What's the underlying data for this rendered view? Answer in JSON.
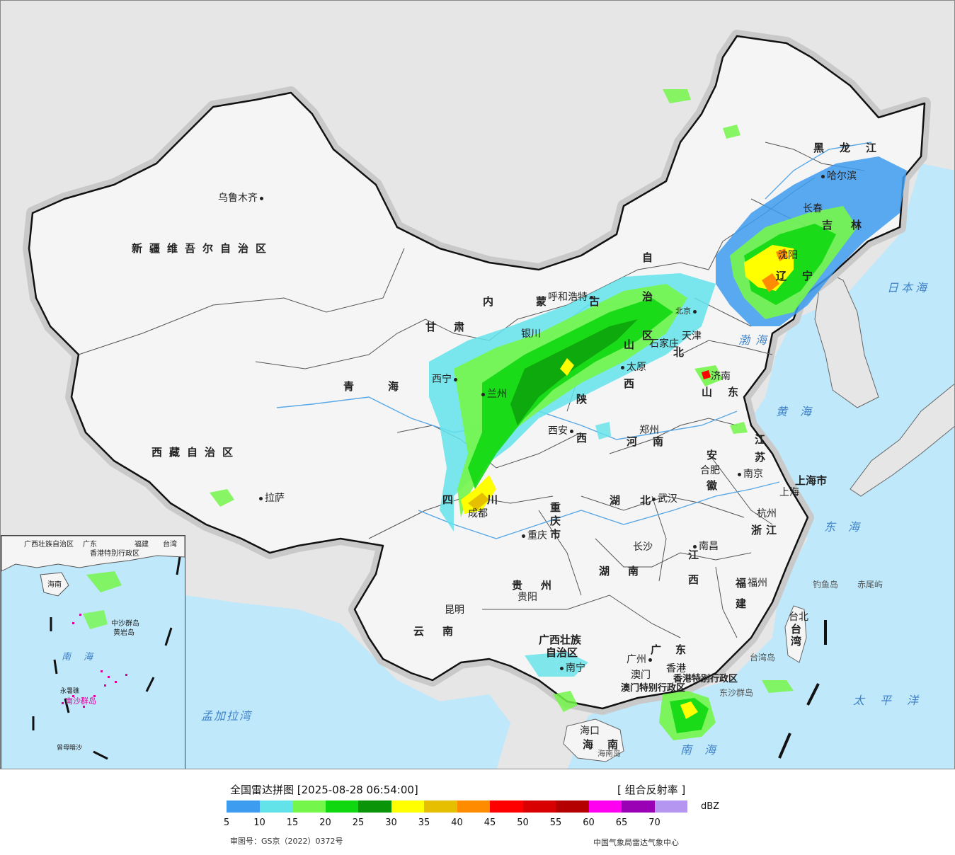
{
  "legend": {
    "title": "全国雷达拼图 [2025-08-28 06:54:00]",
    "product": "[ 组合反射率 ]",
    "unit": "dBZ",
    "approval": "审图号：GS京（2022）0372号",
    "source": "中国气象局雷达气象中心",
    "ticks": [
      "5",
      "10",
      "15",
      "20",
      "25",
      "30",
      "35",
      "40",
      "45",
      "50",
      "55",
      "60",
      "65",
      "70"
    ],
    "colors": [
      "#3d9bf0",
      "#62e3ea",
      "#74f64a",
      "#10d810",
      "#0a940a",
      "#ffff00",
      "#e6c000",
      "#ff8c00",
      "#ff0000",
      "#d80000",
      "#b40000",
      "#ff00f0",
      "#9a00b4",
      "#b496f0"
    ]
  },
  "map": {
    "colors": {
      "land": "#f5f5f5",
      "sea": "#bfe8fb",
      "outside": "#e6e6e6",
      "border": "#111111"
    },
    "provinces": [
      {
        "id": "xinjiang",
        "text": "新疆维吾尔自治区"
      },
      {
        "id": "xizang",
        "text": "西藏自治区"
      },
      {
        "id": "qinghai",
        "text": "青海"
      },
      {
        "id": "gansu",
        "text": "甘肃"
      },
      {
        "id": "neimenggu-1",
        "text": "内蒙古"
      },
      {
        "id": "neimenggu-2",
        "text": "自治区"
      },
      {
        "id": "heilongjiang",
        "text": "黑龙江"
      },
      {
        "id": "jilin",
        "text": "吉林"
      },
      {
        "id": "liaoning",
        "text": "辽宁"
      },
      {
        "id": "hebei",
        "text": "北"
      },
      {
        "id": "shandong",
        "text": "山东"
      },
      {
        "id": "shanxi",
        "text": "山西"
      },
      {
        "id": "shaanxi",
        "text": "陕西"
      },
      {
        "id": "henan",
        "text": "河南"
      },
      {
        "id": "sichuan",
        "text": "四川"
      },
      {
        "id": "chongqing",
        "text": "重庆市"
      },
      {
        "id": "hubei",
        "text": "湖北"
      },
      {
        "id": "anhui",
        "text": "安徽"
      },
      {
        "id": "jiangsu",
        "text": "江苏"
      },
      {
        "id": "zhejiang",
        "text": "浙江"
      },
      {
        "id": "jiangxi",
        "text": "江西"
      },
      {
        "id": "hunan",
        "text": "湖南"
      },
      {
        "id": "guizhou",
        "text": "贵州"
      },
      {
        "id": "yunnan",
        "text": "云南"
      },
      {
        "id": "guangxi-1",
        "text": "广西壮族"
      },
      {
        "id": "guangxi-2",
        "text": "自治区"
      },
      {
        "id": "guangdong",
        "text": "广东"
      },
      {
        "id": "fujian",
        "text": "福建"
      },
      {
        "id": "taiwan",
        "text": "台湾"
      },
      {
        "id": "hainan",
        "text": "海南"
      },
      {
        "id": "shanghai",
        "text": "上海市"
      },
      {
        "id": "hongkong",
        "text": "香港特别行政区"
      },
      {
        "id": "macau",
        "text": "澳门特别行政区"
      }
    ],
    "cities": [
      {
        "id": "urumqi",
        "text": "乌鲁木齐"
      },
      {
        "id": "lhasa",
        "text": "拉萨"
      },
      {
        "id": "xining",
        "text": "西宁"
      },
      {
        "id": "lanzhou",
        "text": "兰州"
      },
      {
        "id": "yinchuan",
        "text": "银川"
      },
      {
        "id": "hohhot",
        "text": "呼和浩特"
      },
      {
        "id": "harbin",
        "text": "哈尔滨"
      },
      {
        "id": "changchun",
        "text": "长春"
      },
      {
        "id": "shenyang",
        "text": "沈阳"
      },
      {
        "id": "beijing",
        "text": "北京"
      },
      {
        "id": "tianjin",
        "text": "天津"
      },
      {
        "id": "shijiazhuang",
        "text": "石家庄"
      },
      {
        "id": "taiyuan",
        "text": "太原"
      },
      {
        "id": "jinan",
        "text": "济南"
      },
      {
        "id": "zhengzhou",
        "text": "郑州"
      },
      {
        "id": "xian",
        "text": "西安"
      },
      {
        "id": "chengdu",
        "text": "成都"
      },
      {
        "id": "chongqing-city",
        "text": "重庆"
      },
      {
        "id": "wuhan",
        "text": "武汉"
      },
      {
        "id": "hefei",
        "text": "合肥"
      },
      {
        "id": "nanjing",
        "text": "南京"
      },
      {
        "id": "shanghai-city",
        "text": "上海"
      },
      {
        "id": "hangzhou",
        "text": "杭州"
      },
      {
        "id": "nanchang",
        "text": "南昌"
      },
      {
        "id": "changsha",
        "text": "长沙"
      },
      {
        "id": "guiyang",
        "text": "贵阳"
      },
      {
        "id": "kunming",
        "text": "昆明"
      },
      {
        "id": "nanning",
        "text": "南宁"
      },
      {
        "id": "guangzhou",
        "text": "广州"
      },
      {
        "id": "aomen",
        "text": "澳门"
      },
      {
        "id": "xianggang",
        "text": "香港"
      },
      {
        "id": "fuzhou",
        "text": "福州"
      },
      {
        "id": "taipei",
        "text": "台北"
      },
      {
        "id": "haikou",
        "text": "海口"
      }
    ],
    "seas": [
      {
        "id": "bohai",
        "text": "渤海"
      },
      {
        "id": "huanghai",
        "text": "黄海"
      },
      {
        "id": "donghai",
        "text": "东海"
      },
      {
        "id": "nanhai",
        "text": "南海"
      },
      {
        "id": "taipingyang",
        "text": "太平洋"
      },
      {
        "id": "ribenhai",
        "text": "日本海"
      },
      {
        "id": "mengjiala",
        "text": "孟加拉湾"
      }
    ],
    "islands": [
      {
        "id": "diaoyudao",
        "text": "钓鱼岛"
      },
      {
        "id": "chiweiyu",
        "text": "赤尾屿"
      },
      {
        "id": "taiwandao",
        "text": "台湾岛"
      },
      {
        "id": "dongshaqundao",
        "text": "东沙群岛"
      },
      {
        "id": "hainandao",
        "text": "海南岛"
      }
    ],
    "inset": {
      "labels": [
        {
          "id": "guangxi",
          "text": "广西壮族自治区"
        },
        {
          "id": "guangdong",
          "text": "广东"
        },
        {
          "id": "fujian",
          "text": "福建"
        },
        {
          "id": "taiwan",
          "text": "台湾"
        },
        {
          "id": "hk",
          "text": "香港特别行政区"
        },
        {
          "id": "hainan",
          "text": "海南"
        },
        {
          "id": "zhongsha",
          "text": "中沙群岛"
        },
        {
          "id": "huangyan",
          "text": "黄岩岛"
        },
        {
          "id": "nanhai",
          "text": "南海"
        },
        {
          "id": "nansha",
          "text": "南沙群岛"
        },
        {
          "id": "yongshu",
          "text": "永暑礁"
        },
        {
          "id": "zengmu",
          "text": "曾母暗沙"
        }
      ]
    }
  }
}
